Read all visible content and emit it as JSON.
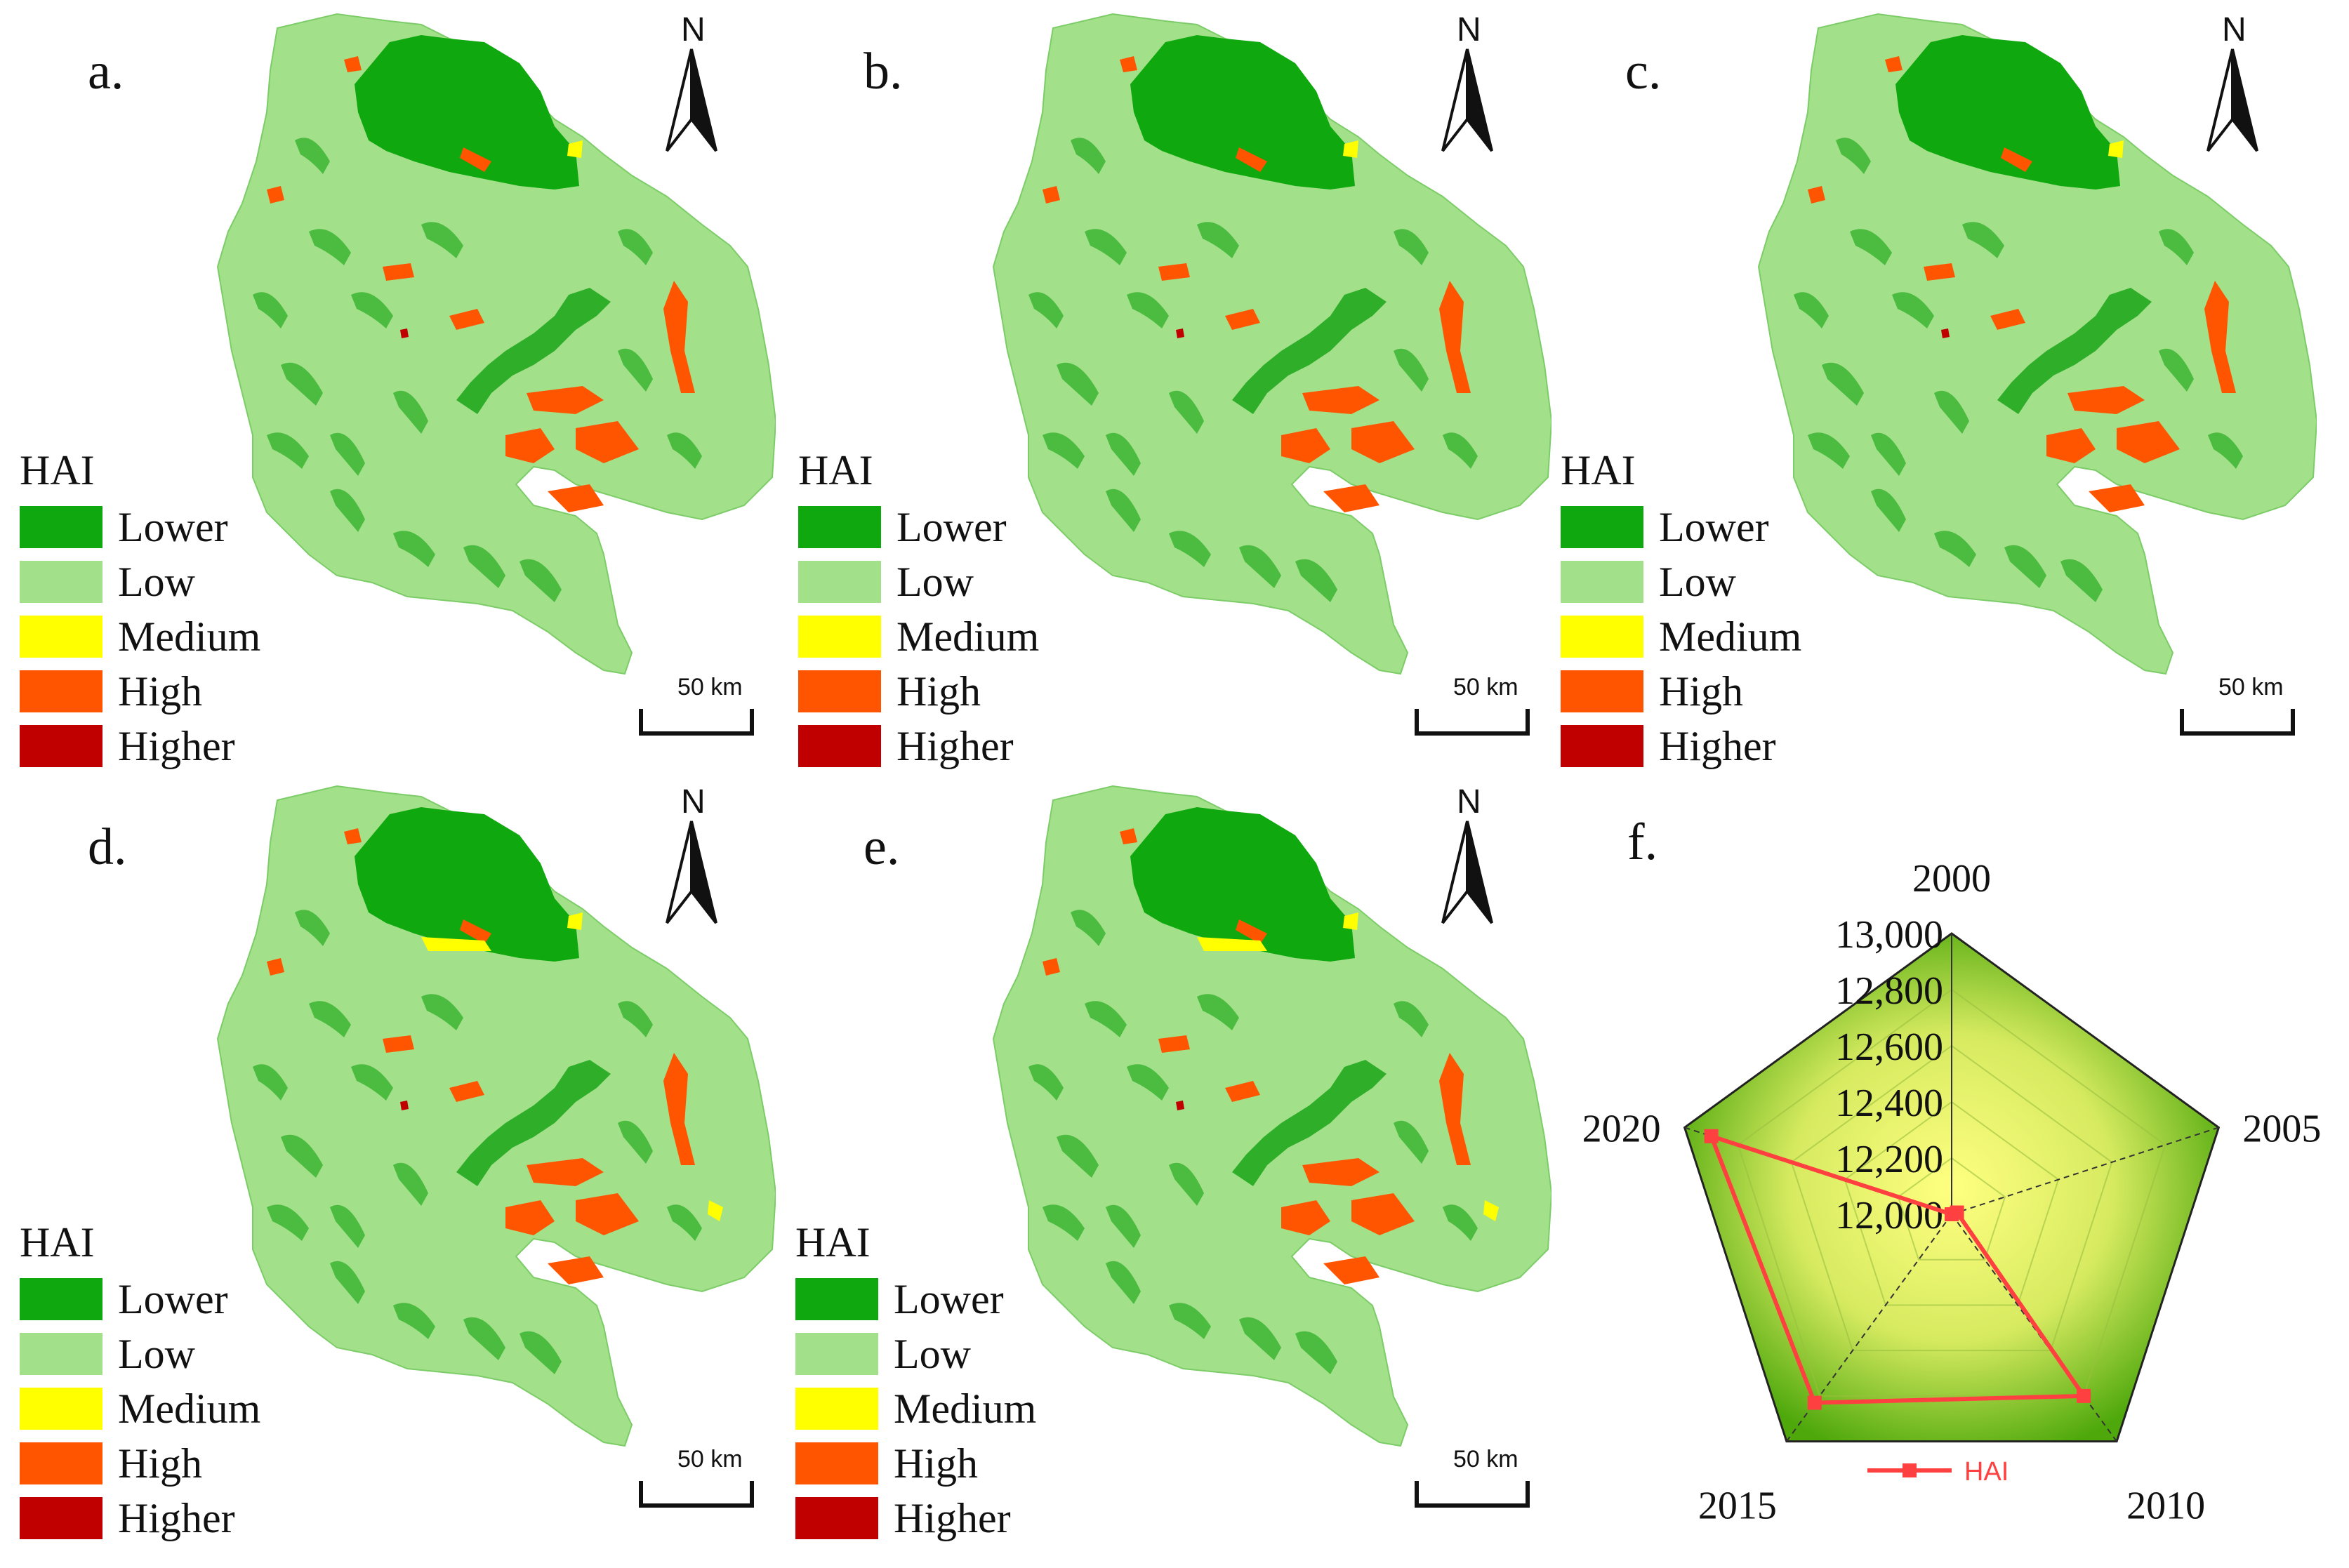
{
  "legend": {
    "title": "HAI",
    "classes": [
      {
        "label": "Lower",
        "color": "#0fa80f"
      },
      {
        "label": "Low",
        "color": "#a3e08a"
      },
      {
        "label": "Medium",
        "color": "#ffff00"
      },
      {
        "label": "High",
        "color": "#ff5500"
      },
      {
        "label": "Higher",
        "color": "#c00000"
      }
    ]
  },
  "north_label": "N",
  "scale_label": "50 km",
  "panels": [
    {
      "label": "a."
    },
    {
      "label": "b."
    },
    {
      "label": "c."
    },
    {
      "label": "d."
    },
    {
      "label": "e."
    }
  ],
  "chart_label": "f.",
  "chart_data": {
    "type": "radar",
    "axes": [
      "2000",
      "2005",
      "2010",
      "2015",
      "2020"
    ],
    "series": [
      {
        "name": "HAI",
        "color": "#ff4040",
        "values": [
          12000,
          12020,
          12800,
          12830,
          12900
        ]
      }
    ],
    "rlim": [
      12000,
      13000
    ],
    "ticks": [
      "12,000",
      "12,200",
      "12,400",
      "12,600",
      "12,800",
      "13,000"
    ],
    "legend_position": "bottom"
  }
}
